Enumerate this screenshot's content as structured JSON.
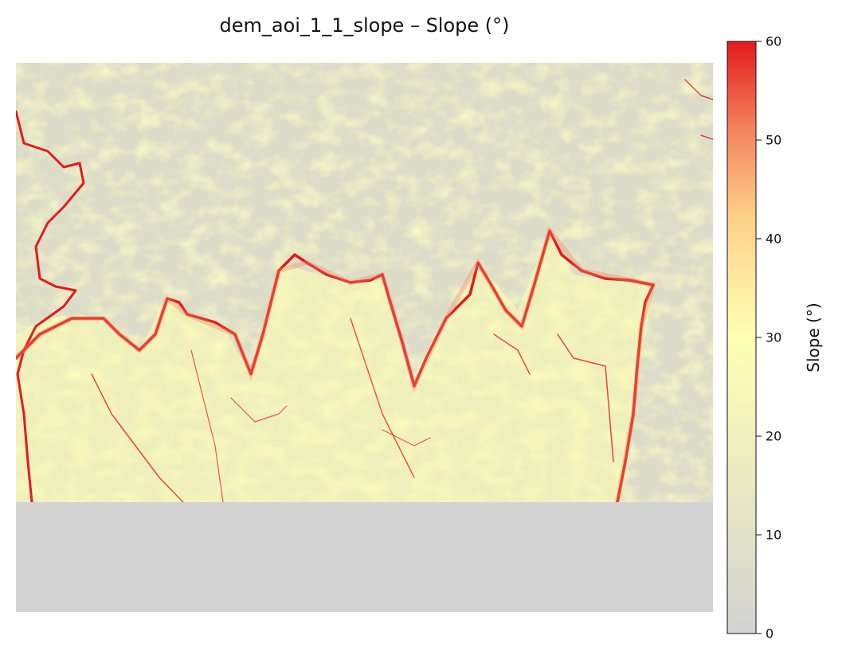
{
  "title": "dem_aoi_1_1_slope – Slope (°)",
  "colorbar": {
    "label": "Slope (°)",
    "ticks": [
      "0",
      "10",
      "20",
      "30",
      "40",
      "50",
      "60"
    ],
    "range": [
      0,
      60
    ],
    "colors": [
      "#d3d3d3",
      "#ffffb3",
      "#e31a1c"
    ]
  },
  "raster": {
    "nodata_color": "#d3d3d3",
    "steep_color": "#e31a1c",
    "mid_color": "#ffffb3"
  }
}
